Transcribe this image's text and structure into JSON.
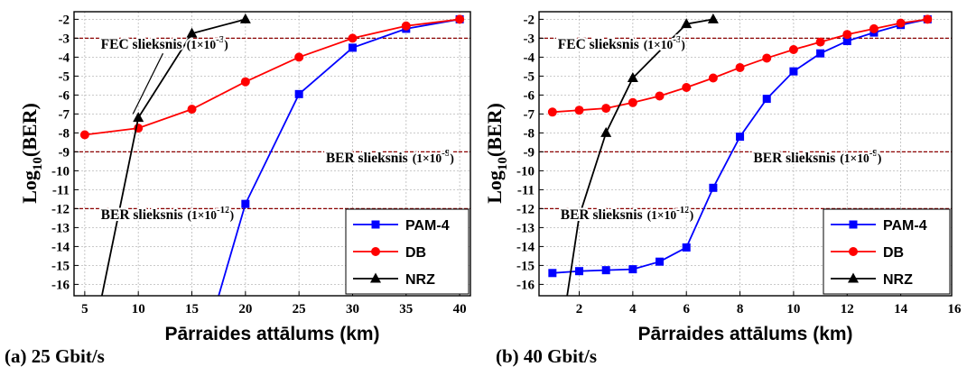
{
  "chart_data": [
    {
      "type": "line",
      "subtitle": "(a) 25 Gbit/s",
      "xlabel": "Pārraides attālums (km)",
      "ylabel": "Log10(BER)",
      "xlim": [
        4,
        41
      ],
      "ylim": [
        -16.6,
        -1.6
      ],
      "xticks": [
        5,
        10,
        15,
        20,
        25,
        30,
        35,
        40
      ],
      "yticks": [
        -2,
        -3,
        -4,
        -5,
        -6,
        -7,
        -8,
        -9,
        -10,
        -11,
        -12,
        -13,
        -14,
        -15,
        -16
      ],
      "grid": true,
      "legend": "bottom-right",
      "thresholds": [
        {
          "y": -3,
          "label": "FEC slieksnis",
          "value": "(1×10-3)",
          "label_pos": [
            6.5,
            -3.55
          ]
        },
        {
          "y": -9,
          "label": "BER slieksnis",
          "value": "(1×10-9)",
          "label_pos": [
            27.5,
            -9.55
          ]
        },
        {
          "y": -12,
          "label": "BER slieksnis",
          "value": "(1×10-12)",
          "label_pos": [
            6.5,
            -12.55
          ]
        }
      ],
      "series": [
        {
          "name": "PAM-4",
          "color": "#0000ff",
          "marker": "square",
          "x": [
            17.5,
            20,
            25,
            30,
            35,
            40
          ],
          "y": [
            -16.6,
            -11.75,
            -5.95,
            -3.5,
            -2.5,
            -2.0
          ]
        },
        {
          "name": "DB",
          "color": "#ff0000",
          "marker": "circle",
          "x": [
            5,
            10,
            15,
            20,
            25,
            30,
            35,
            40
          ],
          "y": [
            -8.1,
            -7.75,
            -6.75,
            -5.3,
            -4.0,
            -3.0,
            -2.35,
            -2.0
          ]
        },
        {
          "name": "NRZ",
          "color": "#000000",
          "marker": "triangle",
          "x": [
            6.6,
            10,
            15,
            20
          ],
          "y": [
            -16.6,
            -7.2,
            -2.75,
            -2.0
          ]
        }
      ],
      "leader": [
        [
          9.5,
          -7.0
        ],
        [
          12.3,
          -3.8
        ]
      ]
    },
    {
      "type": "line",
      "subtitle": "(b) 40 Gbit/s",
      "xlabel": "Pārraides attālums (km)",
      "ylabel": "Log10(BER)",
      "xlim": [
        0.5,
        15.9
      ],
      "ylim": [
        -16.6,
        -1.6
      ],
      "xticks": [
        2,
        4,
        6,
        8,
        10,
        12,
        14,
        16
      ],
      "yticks": [
        -2,
        -3,
        -4,
        -5,
        -6,
        -7,
        -8,
        -9,
        -10,
        -11,
        -12,
        -13,
        -14,
        -15,
        -16
      ],
      "grid": true,
      "legend": "bottom-right",
      "thresholds": [
        {
          "y": -3,
          "label": "FEC slieksnis",
          "value": "(1×10-3)",
          "label_pos": [
            1.2,
            -3.55
          ]
        },
        {
          "y": -9,
          "label": "BER slieksnis",
          "value": "(1×10-9)",
          "label_pos": [
            8.5,
            -9.55
          ]
        },
        {
          "y": -12,
          "label": "BER slieksnis",
          "value": "(1×10-12)",
          "label_pos": [
            1.3,
            -12.55
          ]
        }
      ],
      "series": [
        {
          "name": "PAM-4",
          "color": "#0000ff",
          "marker": "square",
          "x": [
            1,
            2,
            3,
            4,
            5,
            6,
            7,
            8,
            9,
            10,
            11,
            12,
            13,
            14,
            15
          ],
          "y": [
            -15.4,
            -15.3,
            -15.25,
            -15.2,
            -14.8,
            -14.05,
            -10.9,
            -8.2,
            -6.2,
            -4.75,
            -3.8,
            -3.15,
            -2.7,
            -2.3,
            -2.0
          ]
        },
        {
          "name": "DB",
          "color": "#ff0000",
          "marker": "circle",
          "x": [
            1,
            2,
            3,
            4,
            5,
            6,
            7,
            8,
            9,
            10,
            11,
            12,
            13,
            14,
            15
          ],
          "y": [
            -6.9,
            -6.8,
            -6.7,
            -6.4,
            -6.05,
            -5.6,
            -5.1,
            -4.55,
            -4.05,
            -3.6,
            -3.2,
            -2.8,
            -2.5,
            -2.2,
            -2.0
          ]
        },
        {
          "name": "NRZ",
          "color": "#000000",
          "marker": "triangle",
          "x": [
            1.55,
            2,
            3,
            4,
            6,
            7
          ],
          "y": [
            -16.6,
            -12.4,
            -8.0,
            -5.1,
            -2.25,
            -2.0
          ]
        }
      ]
    }
  ]
}
